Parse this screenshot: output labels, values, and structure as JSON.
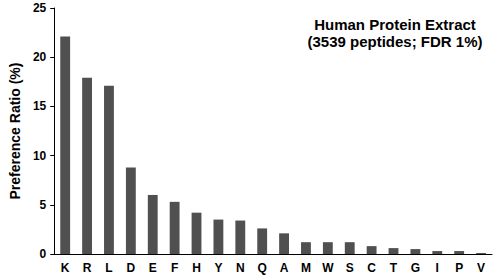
{
  "chart_data": {
    "type": "bar",
    "title": "Human Protein Extract",
    "subtitle": "(3539 peptides; FDR 1%)",
    "y_label": "Preference Ratio (%)",
    "categories": [
      "K",
      "R",
      "L",
      "D",
      "E",
      "F",
      "H",
      "Y",
      "N",
      "Q",
      "A",
      "M",
      "W",
      "S",
      "C",
      "T",
      "G",
      "I",
      "P",
      "V"
    ],
    "values": [
      22.1,
      17.9,
      17.1,
      8.8,
      6.0,
      5.3,
      4.2,
      3.5,
      3.4,
      2.6,
      2.1,
      1.2,
      1.2,
      1.2,
      0.8,
      0.6,
      0.5,
      0.3,
      0.3,
      0.1
    ],
    "color": "#505050",
    "ylim": [
      0,
      25
    ],
    "yticks": [
      0,
      5,
      10,
      15,
      20,
      25
    ],
    "grid": false
  }
}
